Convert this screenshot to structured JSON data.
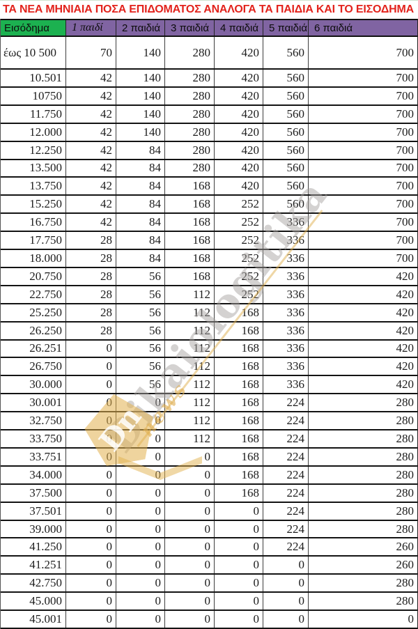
{
  "title": "ΤΑ ΝΕΑ ΜΗΝΙΑΙΑ ΠΟΣΑ ΕΠΙΔΟΜΑΤΟΣ ΑΝΑΛΟΓΑ ΤΑ ΠΑΙΔΙΑ ΚΑΙ ΤΟ ΕΙΣΟΔΗΜΑ",
  "colors": {
    "title_red": "#e2231c",
    "header_green": "#1cb150",
    "header_purple": "#8064a2",
    "watermark_gray": "#a5a09e",
    "watermark_gold": "#e2b14e"
  },
  "watermark": {
    "brand": "Dikaiologitika",
    "sub": "news",
    "monogram": "Dn"
  },
  "chart_data": {
    "type": "table",
    "title": "ΤΑ ΝΕΑ ΜΗΝΙΑΙΑ ΠΟΣΑ ΕΠΙΔΟΜΑΤΟΣ ΑΝΑΛΟΓΑ ΤΑ ΠΑΙΔΙΑ ΚΑΙ ΤΟ ΕΙΣΟΔΗΜΑ",
    "columns": [
      "Εισόδημα",
      "1 παιδί",
      "2 παιδιά",
      "3 παιδιά",
      "4 παιδιά",
      "5 παιδιά",
      "6 παιδιά"
    ],
    "rows": [
      [
        "έως 10 500",
        "70",
        "140",
        "280",
        "420",
        "560",
        "700"
      ],
      [
        "10.501",
        "42",
        "140",
        "280",
        "420",
        "560",
        "700"
      ],
      [
        "10750",
        "42",
        "140",
        "280",
        "420",
        "560",
        "700"
      ],
      [
        "11.750",
        "42",
        "140",
        "280",
        "420",
        "560",
        "700"
      ],
      [
        "12.000",
        "42",
        "140",
        "280",
        "420",
        "560",
        "700"
      ],
      [
        "12.250",
        "42",
        "84",
        "280",
        "420",
        "560",
        "700"
      ],
      [
        "13.500",
        "42",
        "84",
        "280",
        "420",
        "560",
        "700"
      ],
      [
        "13.750",
        "42",
        "84",
        "168",
        "420",
        "560",
        "700"
      ],
      [
        "15.250",
        "42",
        "84",
        "168",
        "252",
        "560",
        "700"
      ],
      [
        "16.750",
        "42",
        "84",
        "168",
        "252",
        "336",
        "700"
      ],
      [
        "17.750",
        "28",
        "84",
        "168",
        "252",
        "336",
        "700"
      ],
      [
        "18.000",
        "28",
        "84",
        "168",
        "252",
        "336",
        "700"
      ],
      [
        "20.750",
        "28",
        "56",
        "168",
        "252",
        "336",
        "420"
      ],
      [
        "22.750",
        "28",
        "56",
        "112",
        "252",
        "336",
        "420"
      ],
      [
        "25.250",
        "28",
        "56",
        "112",
        "168",
        "336",
        "420"
      ],
      [
        "26.250",
        "28",
        "56",
        "112",
        "168",
        "336",
        "420"
      ],
      [
        "26.251",
        "0",
        "56",
        "112",
        "168",
        "336",
        "420"
      ],
      [
        "26.750",
        "0",
        "56",
        "112",
        "168",
        "336",
        "420"
      ],
      [
        "30.000",
        "0",
        "56",
        "112",
        "168",
        "336",
        "420"
      ],
      [
        "30.001",
        "0",
        "0",
        "112",
        "168",
        "224",
        "280"
      ],
      [
        "32.750",
        "0",
        "0",
        "112",
        "168",
        "224",
        "280"
      ],
      [
        "33.750",
        "0",
        "0",
        "112",
        "168",
        "224",
        "280"
      ],
      [
        "33.751",
        "0",
        "0",
        "0",
        "168",
        "224",
        "280"
      ],
      [
        "34.000",
        "0",
        "0",
        "0",
        "168",
        "224",
        "280"
      ],
      [
        "37.500",
        "0",
        "0",
        "0",
        "168",
        "224",
        "280"
      ],
      [
        "37.501",
        "0",
        "0",
        "0",
        "0",
        "224",
        "280"
      ],
      [
        "39.000",
        "0",
        "0",
        "0",
        "0",
        "224",
        "280"
      ],
      [
        "41.250",
        "0",
        "0",
        "0",
        "0",
        "224",
        "260"
      ],
      [
        "41.251",
        "0",
        "0",
        "0",
        "0",
        "0",
        "260"
      ],
      [
        "42.750",
        "0",
        "0",
        "0",
        "0",
        "0",
        "280"
      ],
      [
        "45.000",
        "0",
        "0",
        "0",
        "0",
        "0",
        "280"
      ],
      [
        "45.001",
        "0",
        "0",
        "0",
        "0",
        "0",
        "0"
      ]
    ]
  }
}
